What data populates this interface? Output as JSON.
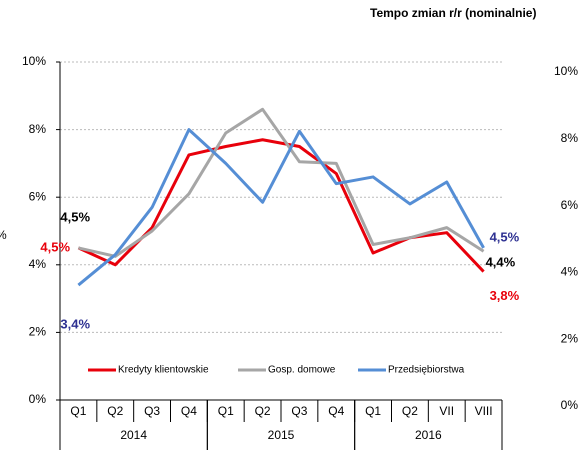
{
  "chart_data": [
    {
      "type": "line",
      "ylabel": "%",
      "categories": [
        "Q1",
        "Q2",
        "Q3",
        "Q4",
        "Q1",
        "Q2",
        "Q3",
        "Q4",
        "Q1",
        "Q2",
        "VII",
        "VIII"
      ],
      "groups": [
        {
          "label": "2014",
          "span": 4
        },
        {
          "label": "2015",
          "span": 4
        },
        {
          "label": "2016",
          "span": 4
        }
      ],
      "ylim": [
        0,
        10
      ],
      "yticks": [
        {
          "value": 0,
          "label": "0%"
        },
        {
          "value": 2,
          "label": "2%"
        },
        {
          "value": 4,
          "label": "4%"
        },
        {
          "value": 6,
          "label": "6%"
        },
        {
          "value": 8,
          "label": "8%"
        },
        {
          "value": 10,
          "label": "10%"
        }
      ],
      "grid": true,
      "legend": "bottom",
      "series": [
        {
          "name": "Kredyty klientowskie",
          "color": "#e8000b",
          "values": [
            4.5,
            4.0,
            5.1,
            7.25,
            7.5,
            7.7,
            7.5,
            6.7,
            4.35,
            4.8,
            4.95,
            3.8
          ],
          "value_labels": [
            "4,5%",
            null,
            null,
            null,
            null,
            null,
            null,
            null,
            null,
            null,
            null,
            "3,8%"
          ],
          "label_color": "#e8000b"
        },
        {
          "name": "Gosp. domowe",
          "color": "#a6a6a6",
          "values": [
            4.5,
            4.25,
            5.0,
            6.1,
            7.9,
            8.6,
            7.05,
            7.0,
            4.6,
            4.8,
            5.1,
            4.4
          ],
          "value_labels": [
            "4,5%",
            null,
            null,
            null,
            null,
            null,
            null,
            null,
            null,
            null,
            null,
            "4,4%"
          ],
          "label_color": "#000000"
        },
        {
          "name": "Przedsiębiorstwa",
          "color": "#558ed5",
          "values": [
            3.4,
            4.3,
            5.7,
            8.0,
            7.0,
            5.85,
            7.95,
            6.4,
            6.6,
            5.8,
            6.45,
            4.5
          ],
          "value_labels": [
            "3,4%",
            null,
            null,
            null,
            null,
            null,
            null,
            null,
            null,
            null,
            null,
            "4,5%"
          ],
          "label_color": "#2e3192"
        }
      ]
    },
    {
      "type": "line",
      "title": "Tempo zmian r/r (nominalnie)",
      "ylim": [
        0,
        10
      ],
      "yticks": [
        {
          "value": 0,
          "label": "0%"
        },
        {
          "value": 2,
          "label": "2%"
        },
        {
          "value": 4,
          "label": "4%"
        },
        {
          "value": 6,
          "label": "6%"
        },
        {
          "value": 8,
          "label": "8%"
        },
        {
          "value": 10,
          "label": "10%"
        }
      ]
    }
  ]
}
